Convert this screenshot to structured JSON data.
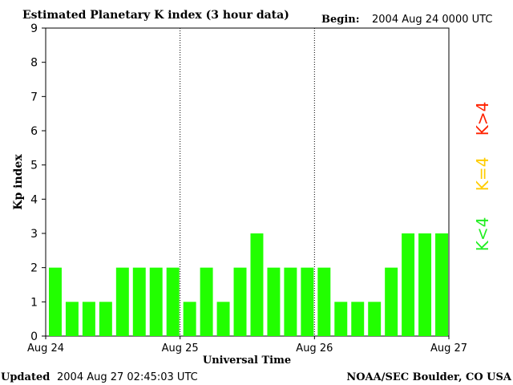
{
  "header": {
    "title": "Estimated Planetary K index (3 hour data)",
    "begin_label": "Begin:",
    "begin_value": "2004 Aug 24 0000 UTC"
  },
  "footer": {
    "updated_label": "Updated",
    "updated_value": "2004 Aug 27 02:45:03 UTC",
    "credit": "NOAA/SEC Boulder, CO USA"
  },
  "legend": {
    "high": "K>4",
    "mid": "K=4",
    "low": "K<4",
    "colors": {
      "high": "#ff2200",
      "mid": "#ffcc00",
      "low": "#22ee22"
    }
  },
  "chart_data": {
    "type": "bar",
    "title": "Estimated Planetary K index (3 hour data)",
    "xlabel": "Universal Time",
    "ylabel": "Kp index",
    "ylim": [
      0,
      9
    ],
    "yticks": [
      0,
      1,
      2,
      3,
      4,
      5,
      6,
      7,
      8,
      9
    ],
    "xtick_labels": [
      "Aug 24",
      "Aug 25",
      "Aug 26",
      "Aug 27"
    ],
    "day_dividers": [
      "Aug 25",
      "Aug 26"
    ],
    "bar_color": "#22ff00",
    "values": [
      2,
      1,
      1,
      1,
      2,
      2,
      2,
      2,
      1,
      2,
      1,
      2,
      3,
      2,
      2,
      2,
      2,
      1,
      1,
      1,
      2,
      3,
      3,
      3
    ]
  }
}
